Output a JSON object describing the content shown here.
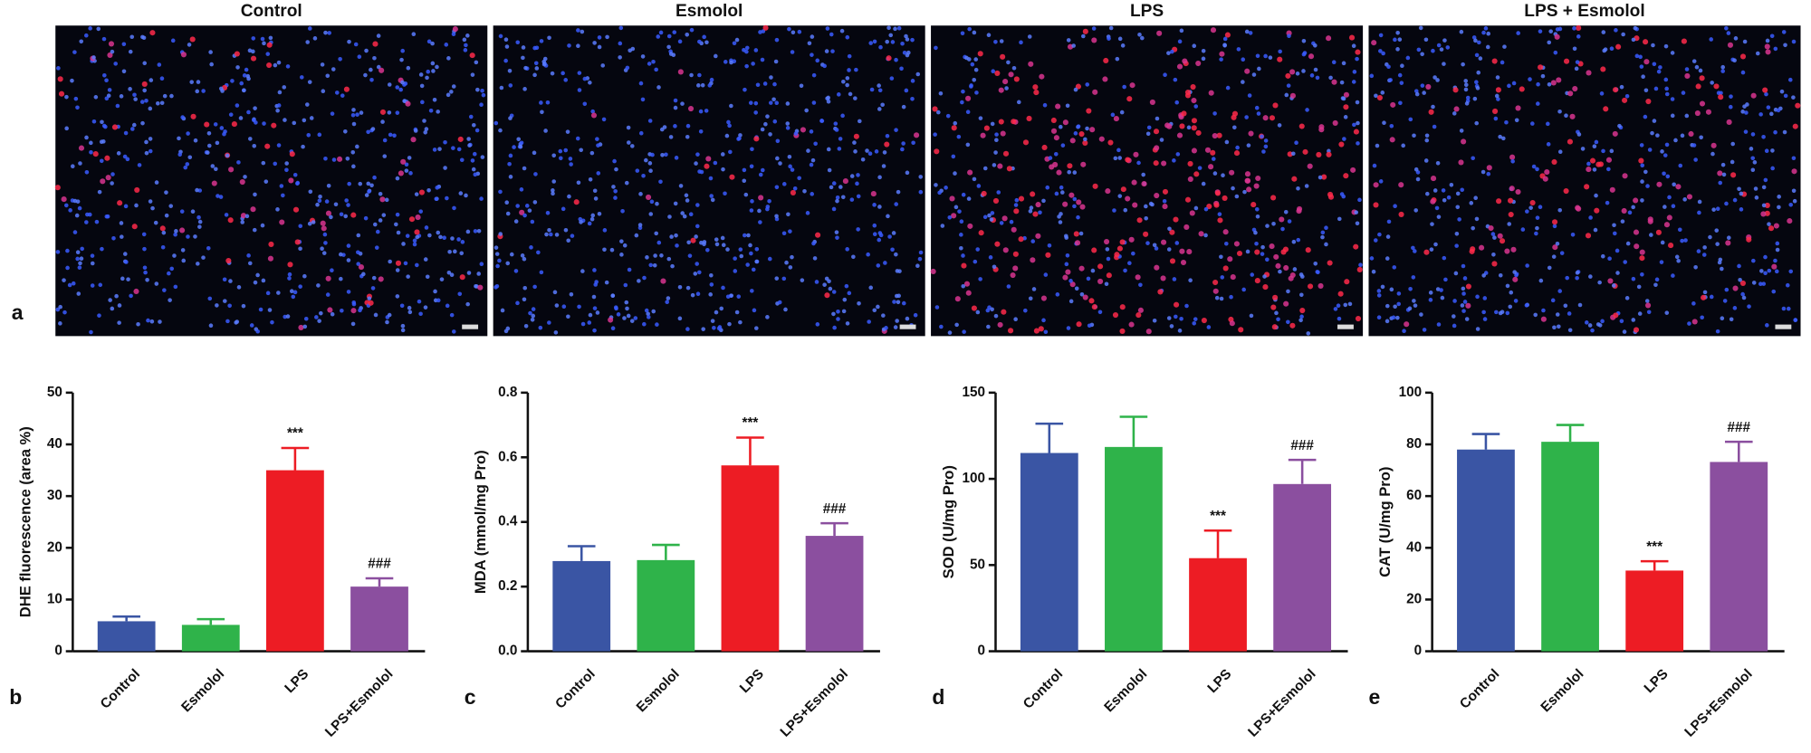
{
  "panel_a": {
    "label": "a",
    "images": [
      {
        "title": "Control"
      },
      {
        "title": "Esmolol"
      },
      {
        "title": "LPS"
      },
      {
        "title": "LPS + Esmolol"
      }
    ]
  },
  "chart_data": [
    {
      "type": "bar",
      "panel": "b",
      "ylabel": "DHE fluorescence (area %)",
      "categories": [
        "Control",
        "Esmolol",
        "LPS",
        "LPS+Esmolol"
      ],
      "values": [
        5.8,
        5.1,
        35.0,
        12.5
      ],
      "errors": [
        0.9,
        1.1,
        4.3,
        1.6
      ],
      "value_annotations": [
        null,
        null,
        "***",
        "###"
      ],
      "colors": [
        "#3a55a4",
        "#2fb34a",
        "#ed1c24",
        "#8b4f9f"
      ],
      "ylim": [
        0,
        50
      ],
      "yticks": [
        0,
        10,
        20,
        30,
        40,
        50
      ]
    },
    {
      "type": "bar",
      "panel": "c",
      "ylabel": "MDA (mmol/mg Pro)",
      "categories": [
        "Control",
        "Esmolol",
        "LPS",
        "LPS+Esmolol"
      ],
      "values": [
        0.279,
        0.282,
        0.575,
        0.357
      ],
      "errors": [
        0.046,
        0.047,
        0.086,
        0.039
      ],
      "value_annotations": [
        null,
        null,
        "***",
        "###"
      ],
      "colors": [
        "#3a55a4",
        "#2fb34a",
        "#ed1c24",
        "#8b4f9f"
      ],
      "ylim": [
        0,
        0.8
      ],
      "yticks": [
        {
          "value": 0,
          "label": "0.0"
        },
        0.2,
        0.4,
        0.6,
        0.8
      ]
    },
    {
      "type": "bar",
      "panel": "d",
      "ylabel": "SOD (U/mg Pro)",
      "categories": [
        "Control",
        "Esmolol",
        "LPS",
        "LPS+Esmolol"
      ],
      "values": [
        115,
        118.5,
        54,
        97
      ],
      "errors": [
        17,
        17.5,
        16,
        14
      ],
      "value_annotations": [
        null,
        null,
        "***",
        "###"
      ],
      "colors": [
        "#3a55a4",
        "#2fb34a",
        "#ed1c24",
        "#8b4f9f"
      ],
      "ylim": [
        0,
        150
      ],
      "yticks": [
        0,
        50,
        100,
        150
      ]
    },
    {
      "type": "bar",
      "panel": "e",
      "ylabel": "CAT (U/mg Pro)",
      "categories": [
        "Control",
        "Esmolol",
        "LPS",
        "LPS+Esmolol"
      ],
      "values": [
        78,
        81,
        31.2,
        73.2
      ],
      "errors": [
        6,
        6.5,
        3.6,
        7.8
      ],
      "value_annotations": [
        null,
        null,
        "***",
        "###"
      ],
      "colors": [
        "#3a55a4",
        "#2fb34a",
        "#ed1c24",
        "#8b4f9f"
      ],
      "ylim": [
        0,
        100
      ],
      "yticks": [
        0,
        20,
        40,
        60,
        80,
        100
      ]
    }
  ]
}
